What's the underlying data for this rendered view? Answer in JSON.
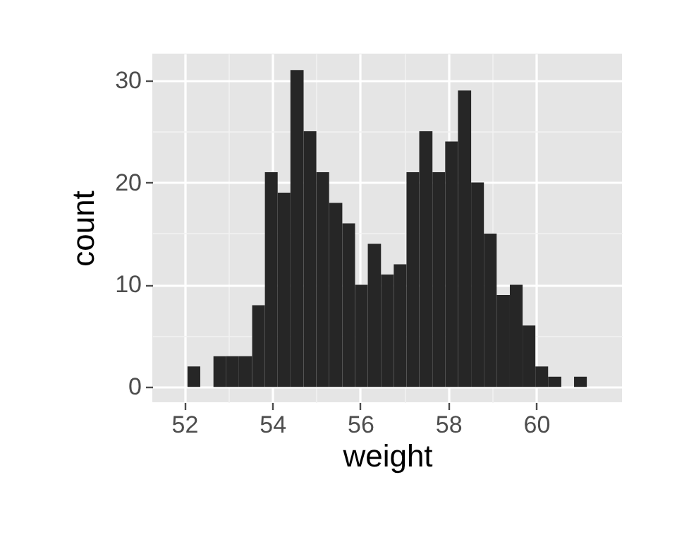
{
  "chart_data": {
    "type": "histogram",
    "xlabel": "weight",
    "ylabel": "count",
    "color": "#262626",
    "bins": [
      52.07,
      52.36,
      52.66,
      52.95,
      53.24,
      53.54,
      53.83,
      54.12,
      54.41,
      54.71,
      55.0,
      55.29,
      55.59,
      55.88,
      56.17,
      56.47,
      56.76,
      57.05,
      57.34,
      57.64,
      57.93,
      58.22,
      58.52,
      58.81,
      59.1,
      59.4,
      59.69,
      59.98,
      60.27,
      60.57,
      60.86,
      61.15
    ],
    "values": [
      2,
      0,
      3,
      3,
      3,
      8,
      21,
      19,
      31,
      25,
      21,
      18,
      16,
      10,
      14,
      11,
      12,
      21,
      25,
      21,
      24,
      29,
      20,
      15,
      9,
      10,
      6,
      2,
      1,
      0,
      1
    ],
    "xlim": [
      51.27,
      61.95
    ],
    "ylim": [
      -1.5,
      32.6
    ],
    "xticks": [
      52,
      54,
      56,
      58,
      60
    ],
    "yticks": [
      0,
      10,
      20,
      30
    ],
    "grid": true
  }
}
